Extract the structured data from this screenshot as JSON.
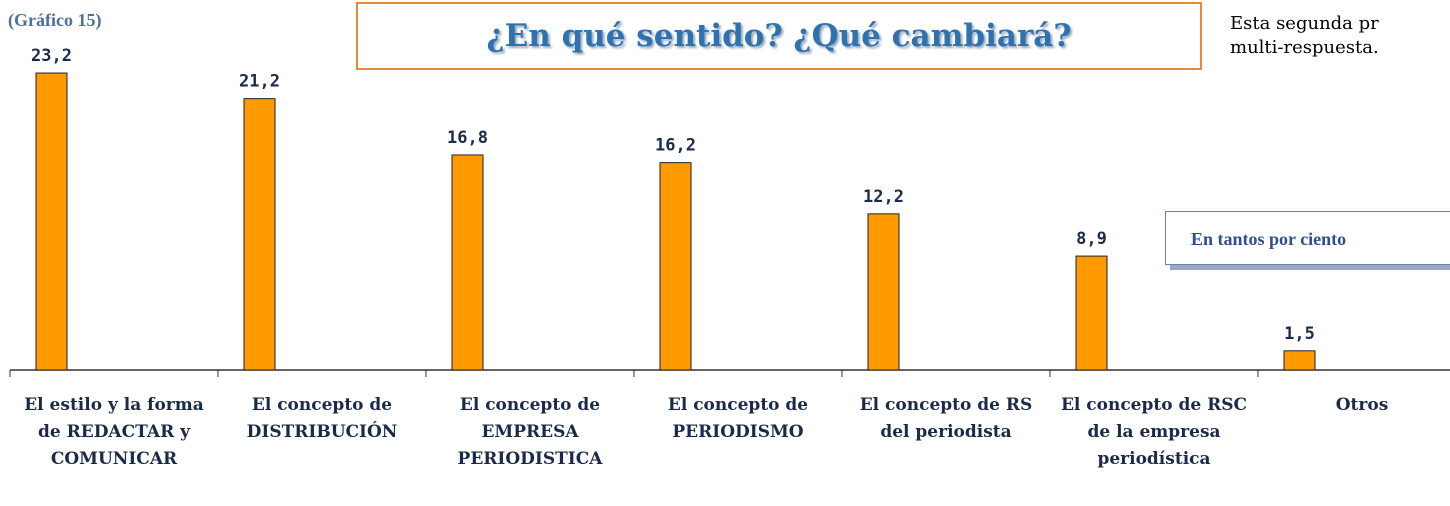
{
  "chart_data": {
    "type": "bar",
    "title": "¿En qué sentido? ¿Qué cambiará?",
    "chart_number": "(Gráfico 15)",
    "side_text": [
      "Esta segunda pr",
      "multi-respuesta."
    ],
    "unit_note": "En tantos por ciento",
    "categories": [
      "El estilo y la forma de REDACTAR y COMUNICAR",
      "El concepto de DISTRIBUCIÓN",
      "El concepto de EMPRESA PERIODISTICA",
      "El concepto de PERIODISMO",
      "El concepto de RS del periodista",
      "El concepto de RSC de la empresa periodística",
      "Otros"
    ],
    "values": [
      23.2,
      21.2,
      16.8,
      16.2,
      12.2,
      8.9,
      1.5
    ],
    "value_labels": [
      "23,2",
      "21,2",
      "16,8",
      "16,2",
      "12,2",
      "8,9",
      "1,5"
    ],
    "color": "#ff9900",
    "ylim": [
      0,
      25
    ]
  }
}
